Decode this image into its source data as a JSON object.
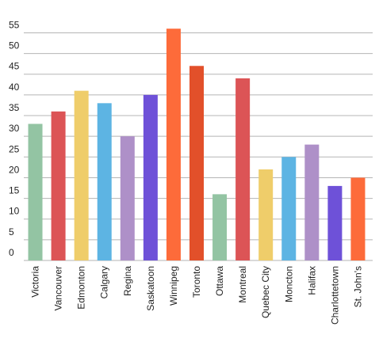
{
  "chart_data": {
    "type": "bar",
    "categories": [
      "Victoria",
      "Vancouver",
      "Edmonton",
      "Calgary",
      "Regina",
      "Saskatoon",
      "Winnipeg",
      "Toronto",
      "Ottawa",
      "Montreal",
      "Quebec City",
      "Moncton",
      "Halifax",
      "Charlottetown",
      "St. John's"
    ],
    "values": [
      33,
      36,
      41,
      38,
      30,
      40,
      56,
      47,
      16,
      44,
      22,
      25,
      28,
      18,
      20
    ],
    "colors": [
      "#93c4a3",
      "#dc5456",
      "#efcd6a",
      "#5db4e3",
      "#ae90c8",
      "#6e51d8",
      "#fd6b3a",
      "#e2502a",
      "#93c4a3",
      "#dc5456",
      "#efcd6a",
      "#5db4e3",
      "#ae90c8",
      "#6e51d8",
      "#fd6b3a"
    ],
    "ylim": [
      0,
      57
    ],
    "yticks": [
      0,
      5,
      10,
      15,
      20,
      25,
      30,
      35,
      40,
      45,
      50,
      55
    ],
    "grid": true
  }
}
